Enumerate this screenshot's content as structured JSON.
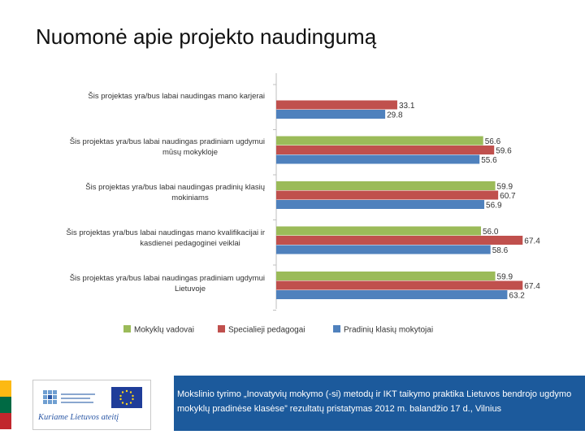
{
  "page": {
    "title": "Nuomonė apie projekto naudingumą"
  },
  "chart_data": {
    "type": "bar",
    "orientation": "horizontal",
    "title": "",
    "xlim": [
      0,
      80
    ],
    "categories": [
      [
        "Šis projektas yra/bus labai naudingas mano karjerai"
      ],
      [
        "Šis projektas yra/bus labai naudingas pradiniam ugdymui",
        "mūsų mokykloje"
      ],
      [
        "Šis projektas yra/bus labai naudingas pradinių klasių",
        "mokiniams"
      ],
      [
        "Šis projektas yra/bus labai naudingas mano kvalifikacijai ir",
        "kasdienei pedagoginei veiklai"
      ],
      [
        "Šis projektas yra/bus labai naudingas pradiniam ugdymui",
        "Lietuvoje"
      ]
    ],
    "series": [
      {
        "name": "Mokyklų vadovai",
        "color": "#9bbb59",
        "values": [
          null,
          56.6,
          59.9,
          56.0,
          59.9
        ]
      },
      {
        "name": "Specialieji pedagogai",
        "color": "#c0504d",
        "values": [
          33.1,
          59.6,
          60.7,
          67.4,
          67.4
        ]
      },
      {
        "name": "Pradinių klasių mokytojai",
        "color": "#4f81bd",
        "values": [
          29.8,
          55.6,
          56.9,
          58.6,
          63.2
        ]
      }
    ],
    "legend": "bottom"
  },
  "footer": {
    "logo_slogan": "Kuriame Lietuvos ateitį",
    "text": "Mokslinio tyrimo „Inovatyvių mokymo (-si) metodų ir IKT taikymo praktika Lietuvos bendrojo ugdymo mokyklų pradinėse klasėse” rezultatų pristatymas 2012 m. balandžio 17 d., Vilnius",
    "flag_colors": [
      "#fdb913",
      "#006a44",
      "#c1272d"
    ],
    "band_color": "#1c5a9c"
  }
}
